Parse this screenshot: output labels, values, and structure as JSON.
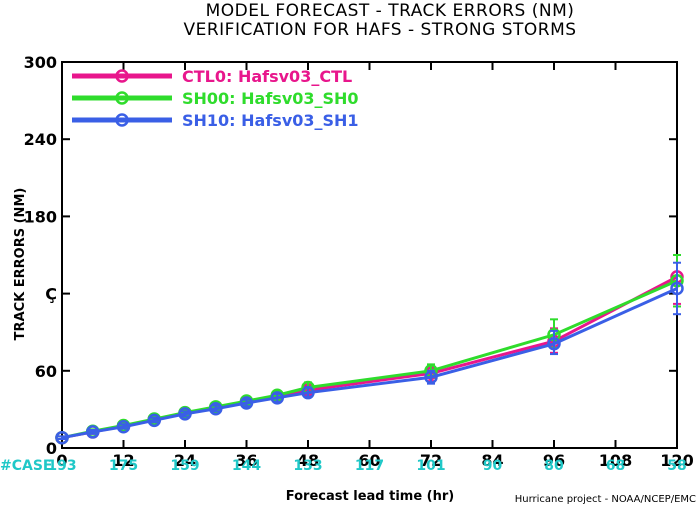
{
  "colors": {
    "CTL0": "#e8168c",
    "SH00": "#2fdc2c",
    "SH10": "#3a5fe6",
    "case_text": "#20c8c8",
    "axis": "#000000"
  },
  "chart_data": {
    "type": "line",
    "title": "MODEL FORECAST - TRACK ERRORS (NM)",
    "subtitle": "VERIFICATION FOR HAFS - STRONG STORMS",
    "xlabel": "Forecast lead time (hr)",
    "ylabel": "TRACK ERRORS (NM)",
    "credit": "Hurricane project - NOAA/NCEP/EMC",
    "xlim": [
      0,
      120
    ],
    "ylim": [
      0,
      300
    ],
    "xticks": [
      0,
      12,
      24,
      36,
      48,
      60,
      72,
      84,
      96,
      108,
      120
    ],
    "yticks": [
      0,
      60,
      120,
      180,
      240,
      300
    ],
    "ytick_labels": [
      "0",
      "60",
      "Ç",
      "180",
      "240",
      "300"
    ],
    "case_label": "#CASE",
    "cases": [
      "193",
      "175",
      "159",
      "144",
      "133",
      "117",
      "101",
      "90",
      "80",
      "68",
      "58"
    ],
    "legend_position": "top-left",
    "x": [
      0,
      6,
      12,
      18,
      24,
      30,
      36,
      42,
      48,
      72,
      96,
      120
    ],
    "series": [
      {
        "name": "CTL0: Hafsv03_CTL",
        "color_key": "CTL0",
        "values": [
          8,
          12.5,
          17,
          22,
          27,
          31,
          36,
          40,
          45,
          58,
          83,
          133
        ],
        "err_low": [
          7,
          11,
          15.5,
          20.5,
          25,
          29,
          33,
          37,
          42,
          52,
          74,
          112
        ],
        "err_high": [
          9,
          14,
          19,
          24,
          29,
          33.5,
          38.5,
          43,
          48,
          63,
          93,
          150
        ]
      },
      {
        "name": "SH00: Hafsv03_SH0",
        "color_key": "SH00",
        "values": [
          8,
          13,
          17.5,
          22.5,
          27.5,
          32,
          36.5,
          41,
          47,
          60,
          88,
          130
        ],
        "err_low": [
          7,
          11.5,
          16,
          21,
          25.5,
          30,
          34,
          38,
          43.5,
          55,
          78,
          110
        ],
        "err_high": [
          9,
          14.5,
          19.5,
          24.5,
          29.5,
          34,
          39.5,
          44,
          51,
          65,
          100,
          150
        ]
      },
      {
        "name": "SH10: Hafsv03_SH1",
        "color_key": "SH10",
        "values": [
          8,
          12.5,
          16.5,
          21.5,
          26.5,
          30.5,
          35,
          39,
          43,
          55,
          81,
          124
        ],
        "err_low": [
          7,
          11,
          15,
          20,
          24.5,
          28.5,
          32.5,
          36,
          40,
          50,
          73,
          104
        ],
        "err_high": [
          9,
          14,
          18.5,
          23.5,
          28.5,
          33,
          37.5,
          42,
          47,
          60,
          91,
          144
        ]
      }
    ]
  }
}
